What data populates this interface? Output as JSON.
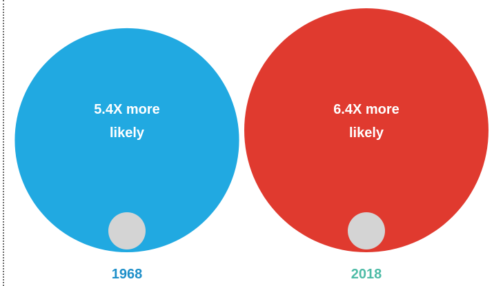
{
  "chart_data": {
    "type": "bubble",
    "title": "",
    "xlabel": "",
    "ylabel": "",
    "grid": false,
    "legend": "none",
    "series": [
      {
        "category": "1968",
        "label": "5.4X more likely",
        "label_lines": [
          "5.4X more",
          "likely"
        ],
        "ratio": 5.4,
        "color": "#21a9e1",
        "year_color": "#1e8fc9"
      },
      {
        "category": "2018",
        "label": "6.4X more likely",
        "label_lines": [
          "6.4X more",
          "likely"
        ],
        "ratio": 6.4,
        "color": "#e03a2f",
        "year_color": "#4dbba6"
      }
    ],
    "baseline": {
      "ratio": 1,
      "color": "#d4d4d4"
    }
  }
}
